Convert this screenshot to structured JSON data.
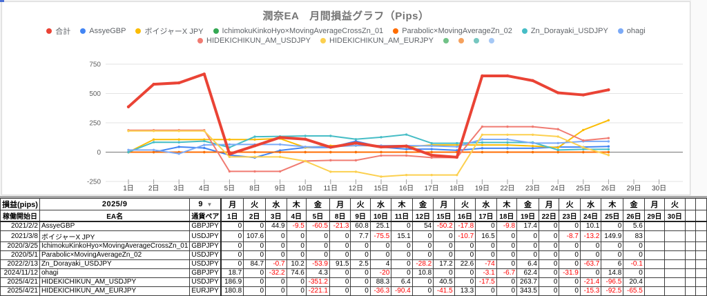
{
  "chart": {
    "title": "潤奈EA　月間損益グラフ（Pips）",
    "legend_rows": [
      [
        {
          "label": "合計",
          "color": "#ea4335"
        },
        {
          "label": "AssyeGBP",
          "color": "#4285f4"
        },
        {
          "label": "ボイジャーX JPY",
          "color": "#fbbc04"
        },
        {
          "label": "IchimokuKinkoHyo×MovingAverageCrossZn_01",
          "color": "#34a853"
        },
        {
          "label": "Parabolic×MovingAverageZn_02",
          "color": "#ff6d01"
        },
        {
          "label": "Zn_Dorayaki_USDJPY",
          "color": "#46bdc6"
        },
        {
          "label": "ohagi",
          "color": "#7baaf7"
        }
      ],
      [
        {
          "label": "HIDEKICHIKUN_AM_USDJPY",
          "color": "#f07b72"
        },
        {
          "label": "HIDEKICHIKUN_AM_EURJPY",
          "color": "#fcd04f"
        },
        {
          "label": "",
          "color": "#71c287"
        },
        {
          "label": "",
          "color": "#f5a15d"
        },
        {
          "label": "",
          "color": "#76c7c0"
        },
        {
          "label": "",
          "color": "#a5c8f5"
        }
      ]
    ]
  },
  "chart_data": {
    "type": "line",
    "title": "潤奈EA　月間損益グラフ（Pips）",
    "categories": [
      "1日",
      "2日",
      "3日",
      "4日",
      "5日",
      "8日",
      "9日",
      "10日",
      "11日",
      "12日",
      "15日",
      "16日",
      "17日",
      "18日",
      "19日",
      "22日",
      "23日",
      "24日",
      "25日",
      "26日",
      "29日",
      "30日"
    ],
    "ylabel": "",
    "xlabel": "",
    "ylim": [
      -250,
      750
    ],
    "yticks": [
      750,
      500,
      250,
      0,
      -250
    ],
    "grid": true,
    "legend_position": "top",
    "series": [
      {
        "name": "合計",
        "color": "#ea4335",
        "width": 4,
        "values": [
          386.4,
          578.7,
          590.7,
          666.0,
          -16.4,
          53.8,
          124.8,
          110.4,
          41.5,
          78.1,
          44.1,
          51.5,
          -26.6,
          -43.1,
          650.3,
          650.3,
          609.7,
          506.2,
          487.9,
          531.3
        ]
      },
      {
        "name": "AssyeGBP",
        "color": "#4285f4",
        "width": 2,
        "values": [
          0,
          0,
          44.9,
          35.4,
          -25.1,
          -46.4,
          14.4,
          39.5,
          39.5,
          93.5,
          43.3,
          25.5,
          25.5,
          15.7,
          33.1,
          33.1,
          33.1,
          43.2,
          43.2,
          48.8
        ]
      },
      {
        "name": "ボイジャーX JPY",
        "color": "#fbbc04",
        "width": 2,
        "values": [
          0,
          107.6,
          107.6,
          107.6,
          107.6,
          107.6,
          115.3,
          39.8,
          54.9,
          54.9,
          54.9,
          44.2,
          60.7,
          60.7,
          60.7,
          60.7,
          52.0,
          38.8,
          188.7,
          271.7
        ]
      },
      {
        "name": "IchimokuKinkoHyo×MovingAverageCrossZn_01",
        "color": "#34a853",
        "width": 2,
        "values": [
          0,
          0,
          0,
          0,
          0,
          0,
          0,
          0,
          0,
          0,
          0,
          0,
          0,
          0,
          0,
          0,
          0,
          0,
          0,
          0
        ]
      },
      {
        "name": "Parabolic×MovingAverageZn_02",
        "color": "#ff6d01",
        "width": 2,
        "values": [
          0,
          0,
          0,
          0,
          0,
          0,
          0,
          0,
          0,
          0,
          0,
          0,
          0,
          0,
          0,
          0,
          0,
          0,
          0,
          0
        ]
      },
      {
        "name": "Zn_Dorayaki_USDJPY",
        "color": "#46bdc6",
        "width": 2,
        "values": [
          0,
          84.7,
          84.0,
          94.2,
          40.3,
          131.8,
          134.3,
          138.3,
          138.3,
          110.1,
          127.3,
          149.9,
          75.9,
          75.9,
          82.3,
          82.3,
          82.3,
          18.6,
          24.6,
          24.5
        ]
      },
      {
        "name": "ohagi",
        "color": "#7baaf7",
        "width": 2,
        "values": [
          18.7,
          18.7,
          -13.5,
          61.1,
          65.4,
          65.4,
          65.4,
          45.4,
          45.4,
          56.2,
          56.2,
          56.2,
          53.1,
          46.4,
          108.8,
          108.8,
          76.9,
          76.9,
          91.7,
          91.7
        ]
      },
      {
        "name": "HIDEKICHIKUN_AM_USDJPY",
        "color": "#f07b72",
        "width": 2,
        "values": [
          186.9,
          186.9,
          186.9,
          186.9,
          -164.3,
          -164.3,
          -164.3,
          -76.0,
          -69.6,
          -69.6,
          -29.1,
          -29.1,
          -46.6,
          -46.6,
          217.1,
          217.1,
          217.1,
          195.7,
          99.2,
          119.6
        ]
      },
      {
        "name": "HIDEKICHIKUN_AM_EURJPY",
        "color": "#fcd04f",
        "width": 2,
        "values": [
          180.8,
          180.8,
          180.8,
          180.8,
          -40.3,
          -40.3,
          -40.3,
          -76.6,
          -167.0,
          -167.0,
          -208.5,
          -195.2,
          -195.2,
          -195.2,
          148.3,
          148.3,
          148.3,
          133.0,
          40.5,
          -25.0
        ]
      }
    ]
  },
  "table": {
    "corner_label": "損益(pips)",
    "period": "2025/9",
    "month_selector": "9",
    "dropdown_arrow": "▼",
    "col_headers": {
      "start_date": "稼働開始日",
      "ea_name": "EA名",
      "pair": "通貨ペア"
    },
    "weekdays": [
      "月",
      "火",
      "水",
      "木",
      "金",
      "月",
      "火",
      "水",
      "木",
      "金",
      "月",
      "火",
      "水",
      "木",
      "金",
      "月",
      "火",
      "水",
      "木",
      "金",
      "月",
      "火"
    ],
    "days": [
      "1日",
      "2日",
      "3日",
      "4日",
      "5日",
      "8日",
      "9日",
      "10日",
      "11日",
      "12日",
      "15日",
      "16日",
      "17日",
      "18日",
      "19日",
      "22日",
      "23日",
      "24日",
      "25日",
      "26日",
      "29日",
      "30日"
    ],
    "rows": [
      {
        "start": "2021/2/2",
        "ea": "AssyeGBP",
        "pair": "GBPJPY",
        "values": [
          "0",
          "0",
          "44.9",
          "-9.5",
          "-60.5",
          "-21.3",
          "60.8",
          "25.1",
          "0",
          "54",
          "-50.2",
          "-17.8",
          "0",
          "-9.8",
          "17.4",
          "0",
          "0",
          "10.1",
          "0",
          "5.6"
        ]
      },
      {
        "start": "2021/3/8",
        "ea": "ボイジャーX JPY",
        "pair": "USDJPY",
        "values": [
          "0",
          "107.6",
          "0",
          "0",
          "0",
          "0",
          "7.7",
          "-75.5",
          "15.1",
          "0",
          "0",
          "-10.7",
          "16.5",
          "0",
          "0",
          "0",
          "-8.7",
          "-13.2",
          "149.9",
          "83"
        ]
      },
      {
        "start": "2020/3/25",
        "ea": "IchimokuKinkoHyo×MovingAverageCrossZn_01",
        "pair": "GBPJPY",
        "values": [
          "0",
          "0",
          "0",
          "0",
          "0",
          "0",
          "0",
          "0",
          "0",
          "0",
          "0",
          "0",
          "0",
          "0",
          "0",
          "0",
          "0",
          "0",
          "0",
          "0"
        ]
      },
      {
        "start": "2020/5/1",
        "ea": "Parabolic×MovingAverageZn_02",
        "pair": "USDJPY",
        "values": [
          "0",
          "0",
          "0",
          "0",
          "0",
          "0",
          "0",
          "0",
          "0",
          "0",
          "0",
          "0",
          "0",
          "0",
          "0",
          "0",
          "0",
          "0",
          "0",
          "0"
        ]
      },
      {
        "start": "2022/2/13",
        "ea": "Zn_Dorayaki_USDJPY",
        "pair": "USDJPY",
        "values": [
          "0",
          "84.7",
          "-0.7",
          "10.2",
          "-53.9",
          "91.5",
          "2.5",
          "4",
          "0",
          "-28.2",
          "17.2",
          "22.6",
          "-74",
          "0",
          "6.4",
          "0",
          "0",
          "-63.7",
          "6",
          "-0.1"
        ]
      },
      {
        "start": "2024/11/12",
        "ea": "ohagi",
        "pair": "GBPJPY",
        "values": [
          "18.7",
          "0",
          "-32.2",
          "74.6",
          "4.3",
          "0",
          "0",
          "-20",
          "0",
          "10.8",
          "0",
          "0",
          "-3.1",
          "-6.7",
          "62.4",
          "0",
          "-31.9",
          "0",
          "14.8",
          "0"
        ]
      },
      {
        "start": "2025/4/21",
        "ea": "HIDEKICHIKUN_AM_USDJPY",
        "pair": "USDJPY",
        "values": [
          "186.9",
          "0",
          "0",
          "0",
          "-351.2",
          "0",
          "0",
          "88.3",
          "6.4",
          "0",
          "40.5",
          "0",
          "-17.5",
          "0",
          "263.7",
          "0",
          "0",
          "-21.4",
          "-96.5",
          "20.4"
        ]
      },
      {
        "start": "2025/4/21",
        "ea": "HIDEKICHIKUN_AM_EURJPY",
        "pair": "EURJPY",
        "values": [
          "180.8",
          "0",
          "0",
          "0",
          "-221.1",
          "0",
          "0",
          "-36.3",
          "-90.4",
          "0",
          "-41.5",
          "13.3",
          "0",
          "0",
          "343.5",
          "0",
          "0",
          "-15.3",
          "-92.5",
          "-65.5"
        ]
      }
    ]
  }
}
